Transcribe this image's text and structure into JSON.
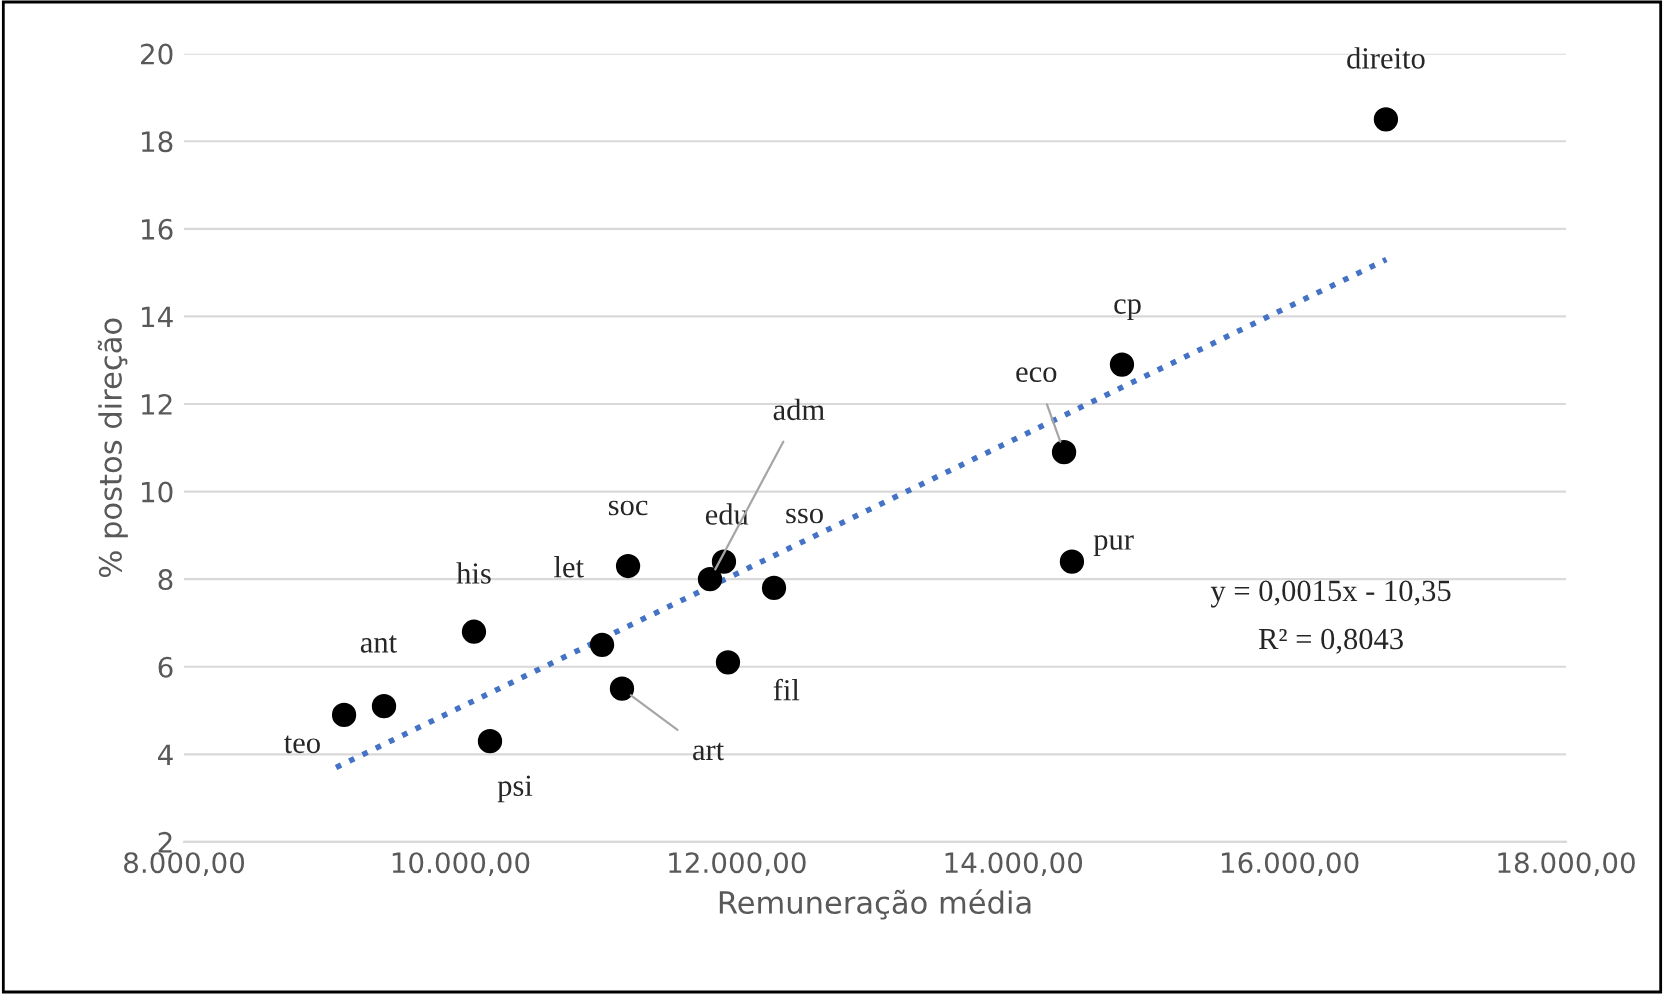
{
  "chart_data": {
    "type": "scatter",
    "xlabel": "Remuneração média",
    "ylabel": "% postos direção",
    "xlim": [
      8000,
      18000
    ],
    "ylim": [
      2,
      20
    ],
    "xticks": [
      {
        "value": 8000,
        "label": "8.000,00"
      },
      {
        "value": 10000,
        "label": "10.000,00"
      },
      {
        "value": 12000,
        "label": "12.000,00"
      },
      {
        "value": 14000,
        "label": "14.000,00"
      },
      {
        "value": 16000,
        "label": "16.000,00"
      },
      {
        "value": 18000,
        "label": "18.000,00"
      }
    ],
    "yticks": [
      2,
      4,
      6,
      8,
      10,
      12,
      14,
      16,
      18,
      20
    ],
    "grid": "y",
    "marker": "circle",
    "legend": false,
    "series": [
      {
        "color": "#000000",
        "x": [
          16697,
          14787,
          14368,
          14425,
          12269,
          11907,
          11806,
          11936,
          11213,
          11025,
          11169,
          10098,
          10214,
          9447,
          9158
        ],
        "values": [
          18.5,
          12.9,
          10.9,
          8.4,
          7.8,
          8.4,
          8.0,
          6.1,
          8.3,
          6.5,
          5.5,
          6.8,
          4.3,
          5.1,
          4.9
        ]
      },
      {
        "type": "line",
        "color": "#4472c4",
        "line_style": "dotted",
        "marker": "none",
        "x": [
          9100,
          16700
        ],
        "values": [
          3.7,
          15.3
        ]
      }
    ],
    "annotations": [
      {
        "text": "direito",
        "x": 16697,
        "y": 18.5
      },
      {
        "text": "cp",
        "x": 14787,
        "y": 12.9
      },
      {
        "text": "eco",
        "x": 14368,
        "y": 10.9
      },
      {
        "text": "pur",
        "x": 14425,
        "y": 8.4
      },
      {
        "text": "sso",
        "x": 12269,
        "y": 7.8
      },
      {
        "text": "edu",
        "x": 11907,
        "y": 8.4
      },
      {
        "text": "adm",
        "x": 11806,
        "y": 8.0
      },
      {
        "text": "fil",
        "x": 11936,
        "y": 6.1
      },
      {
        "text": "soc",
        "x": 11213,
        "y": 8.3
      },
      {
        "text": "let",
        "x": 11025,
        "y": 6.5
      },
      {
        "text": "art",
        "x": 11169,
        "y": 5.5
      },
      {
        "text": "his",
        "x": 10098,
        "y": 6.8
      },
      {
        "text": "psi",
        "x": 10214,
        "y": 4.3
      },
      {
        "text": "ant",
        "x": 9447,
        "y": 5.1
      },
      {
        "text": "teo",
        "x": 9158,
        "y": 4.9
      },
      "y = 0,0015x - 10,35",
      "R² = 0,8043"
    ]
  }
}
